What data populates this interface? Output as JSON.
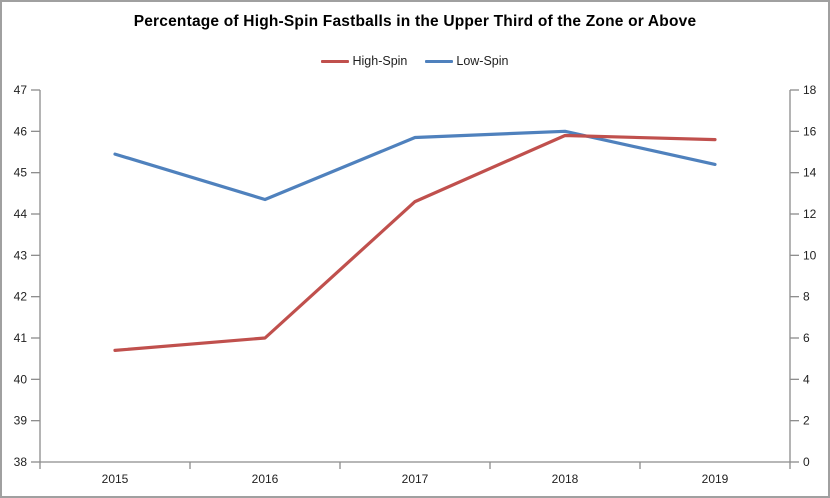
{
  "frame": {
    "background": "#ffffff",
    "border_color": "#a0a0a0"
  },
  "chart_data": {
    "type": "line",
    "title": "Percentage of High-Spin Fastballs in the Upper Third of the Zone or Above",
    "categories": [
      "2015",
      "2016",
      "2017",
      "2018",
      "2019"
    ],
    "series": [
      {
        "name": "High-Spin",
        "axis": "left",
        "color": "#C0504D",
        "values": [
          40.7,
          41.0,
          44.3,
          45.9,
          45.8
        ]
      },
      {
        "name": "Low-Spin",
        "axis": "right",
        "color": "#4F81BD",
        "values": [
          14.9,
          12.7,
          15.7,
          16.0,
          14.4
        ]
      }
    ],
    "axes": {
      "left": {
        "min": 38,
        "max": 47,
        "ticks": [
          38,
          39,
          40,
          41,
          42,
          43,
          44,
          45,
          46,
          47
        ]
      },
      "right": {
        "min": 0,
        "max": 18,
        "ticks": [
          0,
          2,
          4,
          6,
          8,
          10,
          12,
          14,
          16,
          18
        ]
      }
    },
    "xlabel": "",
    "ylabel_left": "",
    "ylabel_right": "",
    "grid": false,
    "legend_position": "top-center",
    "axis_color": "#8c8c8c",
    "label_color": "#1f1f1f"
  }
}
